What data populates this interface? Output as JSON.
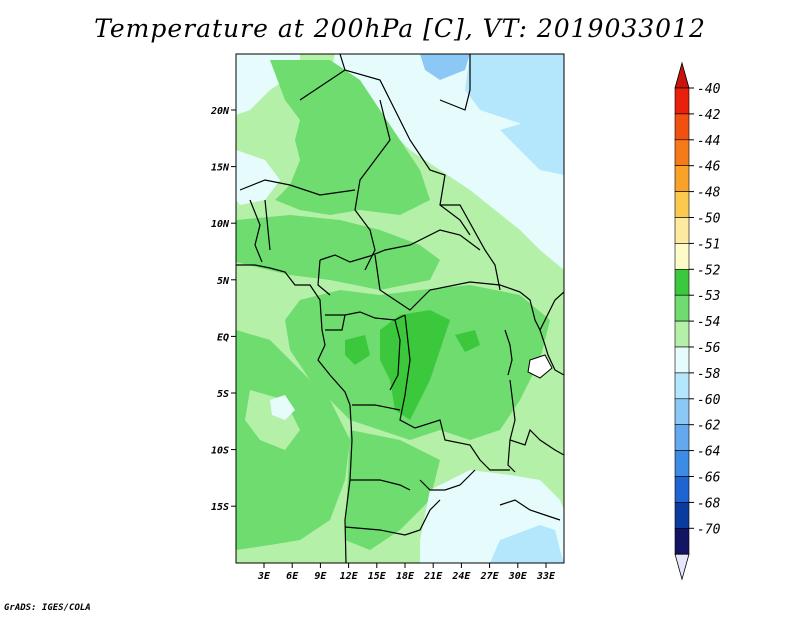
{
  "title": "Temperature at 200hPa [C], VT: 2019033012",
  "footer": "GrADS: IGES/COLA",
  "map": {
    "lat_range": [
      -20,
      24
    ],
    "lon_range": [
      0,
      35
    ],
    "lat_labels": [
      "20N",
      "15N",
      "10N",
      "5N",
      "EQ",
      "5S",
      "10S",
      "15S"
    ],
    "lon_labels": [
      "3E",
      "6E",
      "9E",
      "12E",
      "15E",
      "18E",
      "21E",
      "24E",
      "27E",
      "30E",
      "33E"
    ]
  },
  "colorbar": {
    "labels": [
      "-40",
      "-42",
      "-44",
      "-46",
      "-48",
      "-50",
      "-51",
      "-52",
      "-53",
      "-54",
      "-56",
      "-58",
      "-60",
      "-62",
      "-64",
      "-66",
      "-68",
      "-70"
    ],
    "colors": [
      "#e8200c",
      "#f05010",
      "#f57a18",
      "#f9a228",
      "#fbc850",
      "#fdeaa0",
      "#fdfcc8",
      "#3cc83c",
      "#6edc6e",
      "#b4f0a8",
      "#e6fcfc",
      "#b4e6fc",
      "#8cc8f6",
      "#64a8f0",
      "#3c8ce6",
      "#1e64d2",
      "#0a3ca0",
      "#141464"
    ],
    "top_arrow_color": "#c8140a",
    "bottom_arrow_color": "#e6e6fa"
  }
}
